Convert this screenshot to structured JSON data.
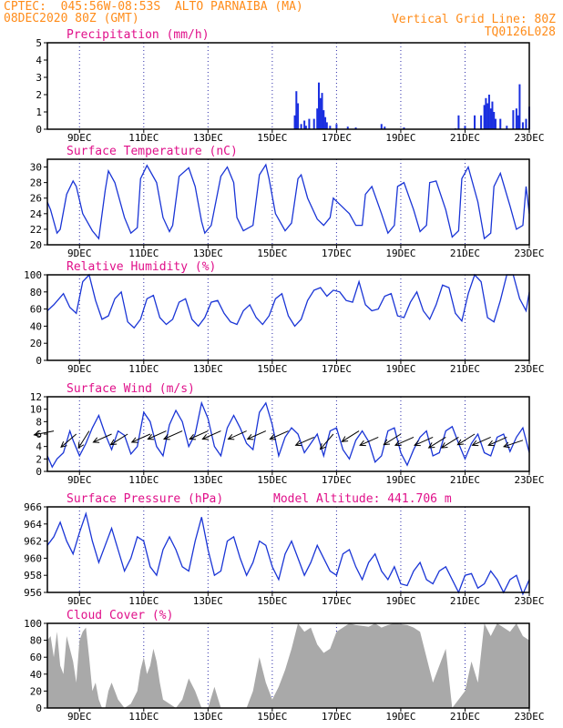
{
  "header": {
    "line1": "CPTEC:  045:56W-08:53S  ALTO PARNAIBA (MA)",
    "line2_left": "08DEC2020 80Z (GMT)",
    "line1_right": "Vertical Grid Line: 80Z",
    "line2_right": "TQ0126L028"
  },
  "colors": {
    "header": "#ff8c1a",
    "title": "#e0108a",
    "series": "#1a35d6",
    "bars": "#1a2fe0",
    "cloud": "#a9a9a9",
    "grid": "#2a2aa8"
  },
  "x_tick_labels": [
    "9DEC",
    "11DEC",
    "13DEC",
    "15DEC",
    "17DEC",
    "19DEC",
    "21DEC",
    "23DEC"
  ],
  "chart_data": [
    {
      "type": "bar",
      "title": "Precipitation (mm/h)",
      "ylim": [
        0,
        5
      ],
      "yticks": [
        0,
        1,
        2,
        3,
        4,
        5
      ],
      "x_days": [
        15.7,
        15.75,
        15.8,
        15.9,
        16.0,
        16.05,
        16.15,
        16.3,
        16.4,
        16.45,
        16.5,
        16.55,
        16.6,
        16.65,
        16.7,
        16.8,
        17.0,
        17.35,
        17.6,
        18.4,
        18.5,
        19.1,
        20.7,
        20.8,
        21.0,
        21.3,
        21.5,
        21.6,
        21.65,
        21.7,
        21.75,
        21.8,
        21.85,
        21.9,
        21.95,
        22.1,
        22.3,
        22.5,
        22.6,
        22.65,
        22.7,
        22.8,
        22.9,
        23.0
      ],
      "values": [
        0.8,
        2.2,
        1.5,
        0.3,
        0.5,
        0.2,
        0.6,
        0.6,
        1.2,
        2.7,
        1.8,
        2.1,
        1.1,
        0.7,
        0.4,
        0.2,
        0.3,
        0.15,
        0.1,
        0.3,
        0.15,
        0.1,
        0.05,
        0.8,
        0.2,
        0.8,
        0.8,
        1.4,
        1.8,
        1.5,
        2.0,
        1.2,
        1.6,
        1.0,
        0.6,
        0.6,
        0.2,
        1.1,
        1.2,
        0.8,
        2.6,
        0.4,
        0.6,
        1.3
      ]
    },
    {
      "type": "line",
      "title": "Surface Temperature (nC)",
      "ylim": [
        20,
        31
      ],
      "yticks": [
        20,
        22,
        24,
        26,
        28,
        30
      ],
      "x_days": [
        8.0,
        8.1,
        8.3,
        8.4,
        8.6,
        8.8,
        8.9,
        9.1,
        9.4,
        9.6,
        9.8,
        9.9,
        10.1,
        10.4,
        10.6,
        10.8,
        10.9,
        11.1,
        11.4,
        11.6,
        11.8,
        11.9,
        12.1,
        12.4,
        12.6,
        12.8,
        12.9,
        13.1,
        13.4,
        13.6,
        13.8,
        13.9,
        14.1,
        14.4,
        14.6,
        14.8,
        14.9,
        15.1,
        15.4,
        15.6,
        15.8,
        15.9,
        16.1,
        16.4,
        16.6,
        16.8,
        16.9,
        17.1,
        17.4,
        17.6,
        17.8,
        17.9,
        18.1,
        18.4,
        18.6,
        18.8,
        18.9,
        19.1,
        19.4,
        19.6,
        19.8,
        19.9,
        20.1,
        20.4,
        20.6,
        20.8,
        20.9,
        21.1,
        21.4,
        21.6,
        21.8,
        21.9,
        22.1,
        22.4,
        22.6,
        22.8,
        22.9,
        23.0
      ],
      "values": [
        25.5,
        24.5,
        21.5,
        22.0,
        26.5,
        28.2,
        27.5,
        24.0,
        21.8,
        20.8,
        27.0,
        29.5,
        28.0,
        23.5,
        21.5,
        22.2,
        28.5,
        30.2,
        28.0,
        23.5,
        21.7,
        22.5,
        28.8,
        29.9,
        27.5,
        23.0,
        21.5,
        22.5,
        28.8,
        30.0,
        28.0,
        23.5,
        21.8,
        22.5,
        29.0,
        30.3,
        28.5,
        24.0,
        21.8,
        22.8,
        28.5,
        29.0,
        26.0,
        23.3,
        22.5,
        23.5,
        26.0,
        25.2,
        24.0,
        22.5,
        22.5,
        26.5,
        27.5,
        24.0,
        21.5,
        22.5,
        27.5,
        28.0,
        24.5,
        21.7,
        22.5,
        28.0,
        28.2,
        24.5,
        21.0,
        21.8,
        28.5,
        30.0,
        25.5,
        20.8,
        21.5,
        27.5,
        29.2,
        25.0,
        22.0,
        22.5,
        27.5,
        24.0
      ]
    },
    {
      "type": "line",
      "title": "Relative Humidity (%)",
      "ylim": [
        0,
        100
      ],
      "yticks": [
        0,
        20,
        40,
        60,
        80,
        100
      ],
      "x_days": [
        8.0,
        8.2,
        8.5,
        8.7,
        8.9,
        9.1,
        9.3,
        9.5,
        9.7,
        9.9,
        10.1,
        10.3,
        10.5,
        10.7,
        10.9,
        11.1,
        11.3,
        11.5,
        11.7,
        11.9,
        12.1,
        12.3,
        12.5,
        12.7,
        12.9,
        13.1,
        13.3,
        13.5,
        13.7,
        13.9,
        14.1,
        14.3,
        14.5,
        14.7,
        14.9,
        15.1,
        15.3,
        15.5,
        15.7,
        15.9,
        16.1,
        16.3,
        16.5,
        16.7,
        16.9,
        17.1,
        17.3,
        17.5,
        17.7,
        17.9,
        18.1,
        18.3,
        18.5,
        18.7,
        18.9,
        19.1,
        19.3,
        19.5,
        19.7,
        19.9,
        20.1,
        20.3,
        20.5,
        20.7,
        20.9,
        21.1,
        21.3,
        21.5,
        21.7,
        21.9,
        22.1,
        22.3,
        22.5,
        22.7,
        22.9,
        23.0
      ],
      "values": [
        58,
        65,
        78,
        62,
        55,
        92,
        100,
        70,
        48,
        52,
        72,
        80,
        45,
        38,
        48,
        72,
        76,
        50,
        42,
        48,
        68,
        72,
        48,
        40,
        50,
        68,
        70,
        55,
        45,
        42,
        58,
        65,
        50,
        42,
        52,
        72,
        78,
        52,
        40,
        48,
        70,
        82,
        85,
        75,
        82,
        80,
        70,
        68,
        92,
        65,
        58,
        60,
        75,
        78,
        52,
        50,
        68,
        80,
        58,
        48,
        65,
        88,
        85,
        55,
        46,
        78,
        100,
        92,
        50,
        45,
        70,
        100,
        100,
        72,
        58,
        80
      ]
    },
    {
      "type": "line",
      "title": "Surface Wind (m/s)",
      "ylim": [
        0,
        12
      ],
      "yticks": [
        0,
        2,
        4,
        6,
        8,
        10,
        12
      ],
      "x_days": [
        8.0,
        8.15,
        8.3,
        8.5,
        8.7,
        8.8,
        9.0,
        9.2,
        9.4,
        9.6,
        9.8,
        10.0,
        10.2,
        10.4,
        10.6,
        10.8,
        11.0,
        11.2,
        11.4,
        11.6,
        11.8,
        12.0,
        12.2,
        12.4,
        12.6,
        12.8,
        13.0,
        13.2,
        13.4,
        13.6,
        13.8,
        14.0,
        14.2,
        14.4,
        14.6,
        14.8,
        15.0,
        15.2,
        15.4,
        15.6,
        15.8,
        16.0,
        16.2,
        16.4,
        16.6,
        16.8,
        17.0,
        17.2,
        17.4,
        17.6,
        17.8,
        18.0,
        18.2,
        18.4,
        18.6,
        18.8,
        19.0,
        19.2,
        19.4,
        19.6,
        19.8,
        20.0,
        20.2,
        20.4,
        20.6,
        20.8,
        21.0,
        21.2,
        21.4,
        21.6,
        21.8,
        22.0,
        22.2,
        22.4,
        22.6,
        22.8,
        23.0
      ],
      "values": [
        2.5,
        0.7,
        2.0,
        3.0,
        6.5,
        5.0,
        2.5,
        4.5,
        7.0,
        9.0,
        6.0,
        3.5,
        6.5,
        5.8,
        2.8,
        4.0,
        9.5,
        8.0,
        4.0,
        2.5,
        7.5,
        9.8,
        8.0,
        4.0,
        6.0,
        11.0,
        8.5,
        4.0,
        2.5,
        7.0,
        9.0,
        7.0,
        4.5,
        3.5,
        9.5,
        11.0,
        7.5,
        2.5,
        5.5,
        7.0,
        6.0,
        3.0,
        4.5,
        6.0,
        2.5,
        6.5,
        7.0,
        3.5,
        2.0,
        5.0,
        6.5,
        4.8,
        1.5,
        2.5,
        6.5,
        7.0,
        3.0,
        1.0,
        3.5,
        5.5,
        6.5,
        2.5,
        3.0,
        6.5,
        7.2,
        4.5,
        2.0,
        4.5,
        6.0,
        3.0,
        2.5,
        5.5,
        6.0,
        3.2,
        5.5,
        7.0,
        3.0
      ],
      "arrows": {
        "x_days": [
          8.2,
          8.9,
          9.3,
          10.0,
          10.5,
          11.2,
          11.7,
          12.2,
          13.0,
          13.4,
          14.2,
          14.8,
          15.5,
          16.3,
          16.9,
          17.7,
          18.3,
          19.0,
          19.4,
          20.0,
          20.4,
          20.8,
          21.3,
          21.8,
          22.3,
          22.8
        ],
        "speed": [
          6.5,
          6,
          6.5,
          6,
          6,
          6,
          6.5,
          6.5,
          6.5,
          6.5,
          6.5,
          6.5,
          6.5,
          5.5,
          6,
          6.5,
          5.5,
          6,
          5.5,
          5.5,
          5.5,
          5.5,
          6,
          5.5,
          5.5,
          5
        ],
        "dx": [
          1,
          0.7,
          0.5,
          0.9,
          0.8,
          0.9,
          0.9,
          0.9,
          0.9,
          0.9,
          0.9,
          0.9,
          0.9,
          0.9,
          0.6,
          0.8,
          0.9,
          0.8,
          0.9,
          0.9,
          0.8,
          0.8,
          0.8,
          0.9,
          0.9,
          0.9
        ],
        "dy": [
          -0.2,
          -0.6,
          -0.8,
          -0.4,
          -0.5,
          -0.4,
          -0.4,
          -0.4,
          -0.4,
          -0.4,
          -0.4,
          -0.4,
          -0.4,
          -0.4,
          -0.7,
          -0.5,
          -0.4,
          -0.5,
          -0.4,
          -0.4,
          -0.5,
          -0.5,
          -0.5,
          -0.4,
          -0.4,
          -0.3
        ]
      }
    },
    {
      "type": "line",
      "title": "Surface Pressure (hPa)",
      "subtitle": "Model Altitude: 441.706 m",
      "ylim": [
        956,
        966
      ],
      "yticks": [
        956,
        958,
        960,
        962,
        964,
        966
      ],
      "x_days": [
        8.0,
        8.2,
        8.4,
        8.6,
        8.8,
        9.0,
        9.2,
        9.4,
        9.6,
        9.8,
        10.0,
        10.2,
        10.4,
        10.6,
        10.8,
        11.0,
        11.2,
        11.4,
        11.6,
        11.8,
        12.0,
        12.2,
        12.4,
        12.6,
        12.8,
        13.0,
        13.2,
        13.4,
        13.6,
        13.8,
        14.0,
        14.2,
        14.4,
        14.6,
        14.8,
        15.0,
        15.2,
        15.4,
        15.6,
        15.8,
        16.0,
        16.2,
        16.4,
        16.6,
        16.8,
        17.0,
        17.2,
        17.4,
        17.6,
        17.8,
        18.0,
        18.2,
        18.4,
        18.6,
        18.8,
        19.0,
        19.2,
        19.4,
        19.6,
        19.8,
        20.0,
        20.2,
        20.4,
        20.6,
        20.8,
        21.0,
        21.2,
        21.4,
        21.6,
        21.8,
        22.0,
        22.2,
        22.4,
        22.6,
        22.8,
        23.0
      ],
      "values": [
        961.5,
        962.5,
        964.2,
        962.0,
        960.5,
        963.0,
        965.2,
        962.0,
        959.5,
        961.5,
        963.5,
        961.0,
        958.5,
        960.0,
        962.5,
        962.0,
        959.0,
        958.0,
        961.0,
        962.5,
        961.0,
        959.0,
        958.5,
        962.0,
        964.8,
        961.0,
        958.0,
        958.5,
        962.0,
        962.5,
        960.0,
        958.0,
        959.5,
        962.0,
        961.5,
        959.0,
        957.5,
        960.5,
        962.0,
        960.0,
        958.0,
        959.5,
        961.5,
        960.0,
        958.5,
        958.0,
        960.5,
        961.0,
        959.0,
        957.5,
        959.5,
        960.5,
        958.5,
        957.5,
        959.0,
        957.0,
        956.8,
        958.5,
        959.5,
        957.5,
        957.0,
        958.5,
        959.0,
        957.5,
        956.0,
        958.0,
        958.2,
        956.5,
        957.0,
        958.5,
        957.5,
        956.0,
        957.5,
        958.0,
        955.8,
        957.5
      ]
    },
    {
      "type": "area",
      "title": "Cloud Cover (%)",
      "ylim": [
        0,
        100
      ],
      "yticks": [
        0,
        20,
        40,
        60,
        80,
        100
      ],
      "x_days": [
        8.0,
        8.1,
        8.2,
        8.3,
        8.4,
        8.5,
        8.6,
        8.7,
        8.8,
        8.9,
        9.0,
        9.1,
        9.2,
        9.3,
        9.4,
        9.5,
        9.6,
        9.7,
        9.8,
        9.9,
        10.0,
        10.2,
        10.4,
        10.6,
        10.8,
        10.9,
        11.0,
        11.1,
        11.2,
        11.3,
        11.4,
        11.5,
        11.6,
        11.8,
        12.0,
        12.2,
        12.4,
        12.6,
        12.8,
        13.0,
        13.2,
        13.4,
        13.6,
        13.8,
        14.0,
        14.2,
        14.4,
        14.6,
        14.8,
        15.0,
        15.2,
        15.4,
        15.6,
        15.8,
        16.0,
        16.2,
        16.4,
        16.6,
        16.8,
        17.0,
        17.2,
        17.4,
        17.6,
        17.8,
        18.0,
        18.2,
        18.4,
        18.6,
        18.8,
        19.0,
        19.2,
        19.4,
        19.6,
        19.8,
        20.0,
        20.2,
        20.4,
        20.6,
        20.8,
        21.0,
        21.2,
        21.4,
        21.6,
        21.8,
        22.0,
        22.2,
        22.4,
        22.6,
        22.8,
        23.0
      ],
      "values": [
        80,
        85,
        60,
        90,
        50,
        40,
        85,
        70,
        55,
        30,
        80,
        90,
        95,
        60,
        20,
        30,
        10,
        0,
        0,
        20,
        30,
        10,
        0,
        5,
        20,
        45,
        60,
        40,
        50,
        70,
        55,
        30,
        10,
        5,
        0,
        10,
        35,
        20,
        0,
        0,
        25,
        0,
        0,
        0,
        0,
        0,
        20,
        60,
        30,
        10,
        25,
        45,
        70,
        100,
        90,
        95,
        75,
        65,
        70,
        90,
        95,
        100,
        98,
        97,
        96,
        100,
        95,
        98,
        100,
        99,
        98,
        95,
        90,
        60,
        30,
        50,
        70,
        0,
        10,
        20,
        55,
        30,
        100,
        85,
        100,
        95,
        90,
        100,
        85,
        80
      ]
    }
  ]
}
